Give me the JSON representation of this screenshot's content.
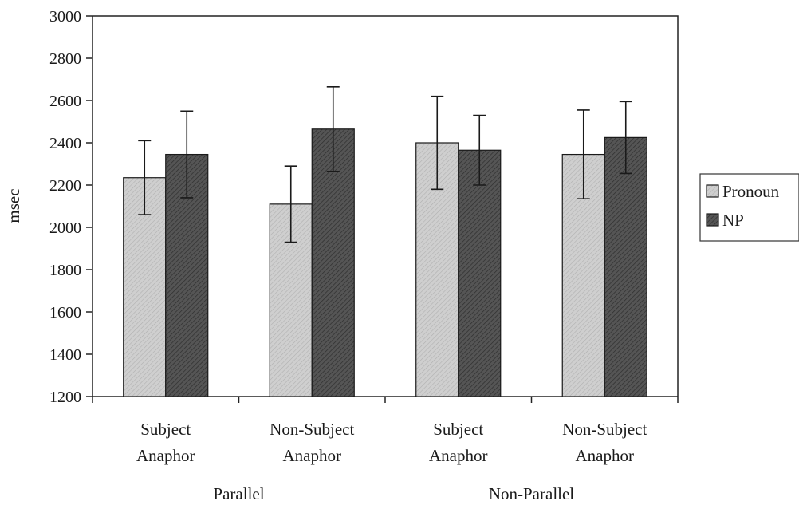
{
  "chart_data": {
    "type": "bar",
    "ylabel": "msec",
    "ylim": [
      1200,
      3000
    ],
    "ytick_step": 200,
    "grid": false,
    "legend_position": "right",
    "categories": [
      "Subject\nAnaphor",
      "Non-Subject\nAnaphor",
      "Subject\nAnaphor",
      "Non-Subject\nAnaphor"
    ],
    "groups": [
      {
        "label": "Parallel",
        "categories": [
          0,
          1
        ]
      },
      {
        "label": "Non-Parallel",
        "categories": [
          2,
          3
        ]
      }
    ],
    "series": [
      {
        "name": "Pronoun",
        "color": "#c8c8c8",
        "values": [
          2235,
          2110,
          2400,
          2345
        ],
        "error": [
          175,
          180,
          220,
          210
        ]
      },
      {
        "name": "NP",
        "color": "#4a4a4a",
        "values": [
          2345,
          2465,
          2365,
          2425
        ],
        "error": [
          205,
          200,
          165,
          170
        ]
      }
    ]
  }
}
